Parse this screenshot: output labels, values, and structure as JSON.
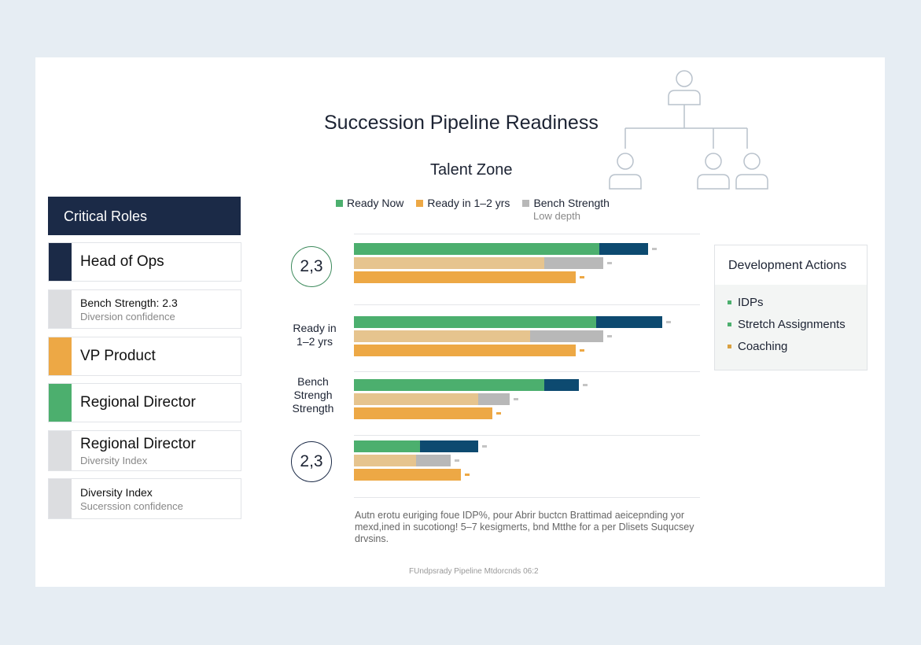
{
  "title": "Succession Pipeline Readiness",
  "critical_roles": {
    "header": "Critical Roles",
    "items": [
      {
        "label": "Head of Ops",
        "sub": "",
        "color": "#1b2a47"
      },
      {
        "label": "Bench Strength: 2.3",
        "sub": "Diversion confidence",
        "color": "#dcdde0"
      },
      {
        "label": "VP Product",
        "sub": "",
        "color": "#eda845"
      },
      {
        "label": "Regional Director",
        "sub": "",
        "color": "#4caf6e"
      },
      {
        "label": "Regional Director",
        "sub": "Diversity Index",
        "color": "#dcdde0"
      },
      {
        "label": "Diversity Index",
        "sub": "Sucerssion confidence",
        "color": "#dcdde0"
      }
    ]
  },
  "development_actions": {
    "header": "Development Actions",
    "items": [
      {
        "label": "IDPs",
        "color": "#4caf6e"
      },
      {
        "label": "Stretch Assignments",
        "color": "#4caf6e"
      },
      {
        "label": "Coaching",
        "color": "#d9a040"
      }
    ]
  },
  "footnote_paragraph": "Autn erotu euriging foue IDP%, pour Abrir buctcn Brattimad aeicepnding yor mexd,ined in sucotiong! 5–7 kesigmerts, bnd Mtthe for a per Dlisets Suqucsey drvsins.",
  "footer": "FUndpsrady Pipeline Mtdorcnds 06:2",
  "chart_data": {
    "type": "bar",
    "orientation": "horizontal",
    "stacked": true,
    "title": "Talent Zone",
    "legend": [
      {
        "name": "Ready Now",
        "color": "#4caf6e"
      },
      {
        "name": "Ready in 1–2 yrs",
        "color": "#eda845"
      },
      {
        "name": "Bench Strength",
        "color": "#b8b8b8",
        "note": "Low depth"
      }
    ],
    "legend_position": "top",
    "grid": false,
    "colors": {
      "green": "#4caf6e",
      "navy": "#0d4a70",
      "tan": "#e6c48e",
      "gray": "#b8b8b8",
      "orange": "#eda845"
    },
    "groups": [
      {
        "label": "2,3",
        "style": "circle-green",
        "rows": [
          [
            [
              "green",
              71
            ],
            [
              "navy",
              14
            ]
          ],
          [
            [
              "tan",
              55
            ],
            [
              "gray",
              17
            ]
          ],
          [
            [
              "orange",
              64
            ]
          ]
        ]
      },
      {
        "label": "Ready in\n1–2 yrs",
        "style": "text",
        "rows": [
          [
            [
              "green",
              70
            ],
            [
              "navy",
              19
            ]
          ],
          [
            [
              "tan",
              51
            ],
            [
              "gray",
              21
            ]
          ],
          [
            [
              "orange",
              64
            ]
          ]
        ]
      },
      {
        "label": "Bench\nStrengh\nStrength",
        "style": "text",
        "rows": [
          [
            [
              "green",
              55
            ],
            [
              "navy",
              10
            ]
          ],
          [
            [
              "tan",
              36
            ],
            [
              "gray",
              9
            ]
          ],
          [
            [
              "orange",
              40
            ]
          ]
        ]
      },
      {
        "label": "2,3",
        "style": "circle-navy",
        "rows": [
          [
            [
              "green",
              19
            ],
            [
              "navy",
              17
            ]
          ],
          [
            [
              "tan",
              18
            ],
            [
              "gray",
              10
            ]
          ],
          [
            [
              "orange",
              31
            ]
          ]
        ]
      }
    ]
  }
}
